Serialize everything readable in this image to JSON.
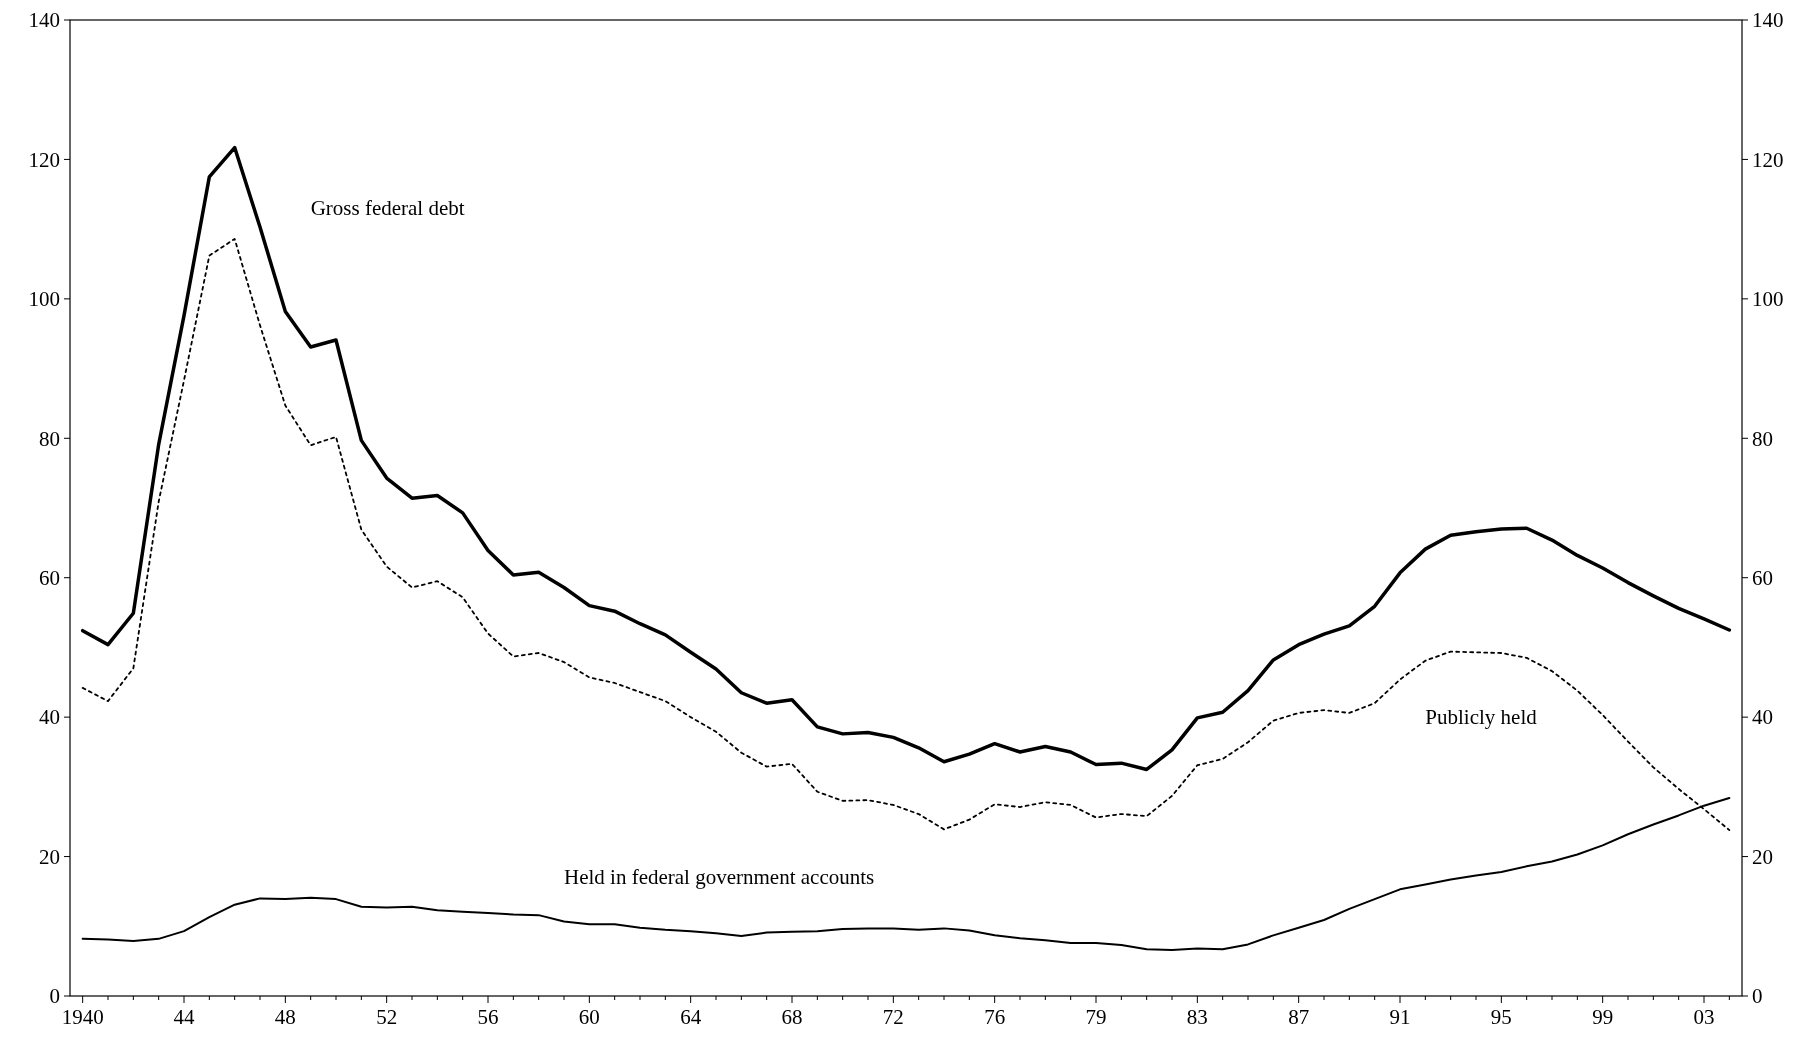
{
  "chart_data": {
    "type": "line",
    "categories": [
      "1940",
      null,
      null,
      null,
      "44",
      null,
      null,
      null,
      "48",
      null,
      null,
      null,
      "52",
      null,
      null,
      null,
      "56",
      null,
      null,
      null,
      "60",
      null,
      null,
      null,
      "64",
      null,
      null,
      null,
      "68",
      null,
      null,
      null,
      "72",
      null,
      null,
      null,
      "76",
      null,
      null,
      null,
      "79",
      null,
      null,
      null,
      "83",
      null,
      null,
      null,
      "87",
      null,
      null,
      null,
      "91",
      null,
      null,
      null,
      "95",
      null,
      null,
      null,
      "99",
      null,
      null,
      null,
      "03",
      null
    ],
    "ylim": [
      0,
      140
    ],
    "yticks": [
      0,
      20,
      40,
      60,
      80,
      100,
      120,
      140
    ],
    "y2lim": [
      0,
      140
    ],
    "y2ticks": [
      0,
      20,
      40,
      60,
      80,
      100,
      120,
      140
    ],
    "grid": false,
    "legend": false,
    "series": [
      {
        "name": "Gross federal debt",
        "color": "#000000",
        "line_style": "solid",
        "values": [
          52.4,
          50.4,
          54.9,
          79.1,
          97.6,
          117.5,
          121.7,
          110.3,
          98.2,
          93.1,
          94.1,
          79.7,
          74.3,
          71.4,
          71.8,
          69.3,
          63.9,
          60.4,
          60.8,
          58.6,
          56.0,
          55.2,
          53.4,
          51.8,
          49.3,
          46.9,
          43.5,
          42.0,
          42.5,
          38.6,
          37.6,
          37.8,
          37.1,
          35.6,
          33.6,
          34.7,
          36.2,
          35.0,
          35.8,
          35.0,
          33.2,
          33.4,
          32.5,
          35.3,
          39.9,
          40.7,
          43.8,
          48.2,
          50.4,
          51.9,
          53.1,
          55.9,
          60.7,
          64.1,
          66.1,
          66.6,
          67.0,
          67.1,
          65.4,
          63.2,
          61.4,
          59.3,
          57.4,
          55.6,
          54.1,
          52.5
        ]
      },
      {
        "name": "Publicly held",
        "color": "#000000",
        "line_style": "dotted",
        "values": [
          44.2,
          42.3,
          47.0,
          70.9,
          88.3,
          106.2,
          108.6,
          96.2,
          84.7,
          79.0,
          80.2,
          66.9,
          61.6,
          58.6,
          59.5,
          57.2,
          52.0,
          48.7,
          49.2,
          47.9,
          45.7,
          44.9,
          43.6,
          42.3,
          40.0,
          37.9,
          34.9,
          32.9,
          33.3,
          29.3,
          28.0,
          28.1,
          27.4,
          26.1,
          23.9,
          25.3,
          27.5,
          27.1,
          27.8,
          27.4,
          25.6,
          26.1,
          25.8,
          28.7,
          33.1,
          34.0,
          36.4,
          39.5,
          40.6,
          41.0,
          40.6,
          42.0,
          45.4,
          48.1,
          49.4,
          49.3,
          49.2,
          48.5,
          46.6,
          43.8,
          40.3,
          36.5,
          32.8,
          29.7,
          26.8,
          23.8
        ]
      },
      {
        "name": "Held in federal government accounts",
        "color": "#000000",
        "line_style": "solid",
        "values": [
          8.2,
          8.1,
          7.9,
          8.2,
          9.3,
          11.3,
          13.1,
          14.0,
          13.9,
          14.1,
          13.9,
          12.8,
          12.7,
          12.8,
          12.3,
          12.1,
          11.9,
          11.7,
          11.6,
          10.7,
          10.3,
          10.3,
          9.8,
          9.5,
          9.3,
          9.0,
          8.6,
          9.1,
          9.2,
          9.3,
          9.6,
          9.7,
          9.7,
          9.5,
          9.7,
          9.4,
          8.7,
          8.3,
          8.0,
          7.6,
          7.6,
          7.3,
          6.7,
          6.6,
          6.8,
          6.7,
          7.4,
          8.7,
          9.8,
          10.9,
          12.5,
          13.9,
          15.3,
          16.0,
          16.7,
          17.3,
          17.8,
          18.6,
          19.3,
          20.3,
          21.6,
          23.2,
          24.6,
          25.9,
          27.3,
          28.4
        ]
      }
    ]
  }
}
